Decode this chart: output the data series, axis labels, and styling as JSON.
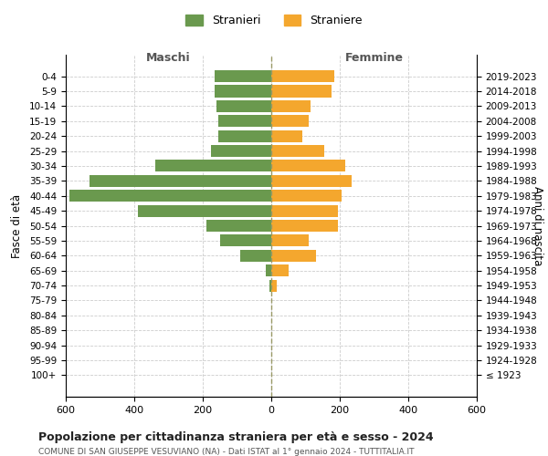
{
  "age_groups": [
    "100+",
    "95-99",
    "90-94",
    "85-89",
    "80-84",
    "75-79",
    "70-74",
    "65-69",
    "60-64",
    "55-59",
    "50-54",
    "45-49",
    "40-44",
    "35-39",
    "30-34",
    "25-29",
    "20-24",
    "15-19",
    "10-14",
    "5-9",
    "0-4"
  ],
  "birth_years": [
    "≤ 1923",
    "1924-1928",
    "1929-1933",
    "1934-1938",
    "1939-1943",
    "1944-1948",
    "1949-1953",
    "1954-1958",
    "1959-1963",
    "1964-1968",
    "1969-1973",
    "1974-1978",
    "1979-1983",
    "1984-1988",
    "1989-1993",
    "1994-1998",
    "1999-2003",
    "2004-2008",
    "2009-2013",
    "2014-2018",
    "2019-2023"
  ],
  "males": [
    0,
    0,
    0,
    0,
    0,
    0,
    5,
    15,
    90,
    150,
    190,
    390,
    590,
    530,
    340,
    175,
    155,
    155,
    160,
    165,
    165
  ],
  "females": [
    0,
    0,
    0,
    0,
    0,
    0,
    15,
    50,
    130,
    110,
    195,
    195,
    205,
    235,
    215,
    155,
    90,
    110,
    115,
    175,
    185
  ],
  "male_color": "#6a994e",
  "female_color": "#f4a72e",
  "background_color": "#ffffff",
  "grid_color": "#cccccc",
  "center_line_color": "#999966",
  "title": "Popolazione per cittadinanza straniera per età e sesso - 2024",
  "subtitle": "COMUNE DI SAN GIUSEPPE VESUVIANO (NA) - Dati ISTAT al 1° gennaio 2024 - TUTTITALIA.IT",
  "left_header": "Maschi",
  "right_header": "Femmine",
  "yleft_label": "Fasce di età",
  "yright_label": "Anni di nascita",
  "legend_stranieri": "Stranieri",
  "legend_straniere": "Straniere",
  "xlim": 600,
  "xtick_labels": [
    "600",
    "400",
    "200",
    "0",
    "200",
    "400",
    "600"
  ]
}
